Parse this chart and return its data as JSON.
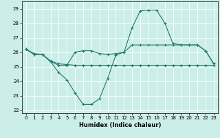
{
  "xlabel": "Humidex (Indice chaleur)",
  "bg_color": "#cceee8",
  "line_color": "#1a7a6e",
  "xlim": [
    -0.5,
    23.5
  ],
  "ylim": [
    21.8,
    29.5
  ],
  "yticks": [
    22,
    23,
    24,
    25,
    26,
    27,
    28,
    29
  ],
  "xticks": [
    0,
    1,
    2,
    3,
    4,
    5,
    6,
    7,
    8,
    9,
    10,
    11,
    12,
    13,
    14,
    15,
    16,
    17,
    18,
    19,
    20,
    21,
    22,
    23
  ],
  "line1_x": [
    0,
    1,
    2,
    3,
    4,
    5,
    6,
    7,
    8,
    9,
    10,
    11,
    12,
    13,
    14,
    15,
    16,
    17,
    18,
    19,
    20,
    21,
    22,
    23
  ],
  "line1_y": [
    26.2,
    25.9,
    25.85,
    25.4,
    25.2,
    25.15,
    25.1,
    25.1,
    25.1,
    25.1,
    25.1,
    25.1,
    25.1,
    25.1,
    25.1,
    25.1,
    25.1,
    25.1,
    25.1,
    25.1,
    25.1,
    25.1,
    25.1,
    25.1
  ],
  "line2_x": [
    0,
    1,
    2,
    3,
    4,
    5,
    6,
    7,
    8,
    9,
    10,
    11,
    12,
    13,
    14,
    15,
    16,
    17,
    18,
    19,
    20,
    21,
    22,
    23
  ],
  "line2_y": [
    26.2,
    25.85,
    25.85,
    25.35,
    24.6,
    24.1,
    23.2,
    22.4,
    22.4,
    22.8,
    24.2,
    25.8,
    26.0,
    26.5,
    26.5,
    26.5,
    26.5,
    26.5,
    26.5,
    26.5,
    26.5,
    26.5,
    26.1,
    25.2
  ],
  "line3_x": [
    0,
    1,
    2,
    3,
    4,
    5,
    6,
    7,
    8,
    9,
    10,
    11,
    12,
    13,
    14,
    15,
    16,
    17,
    18,
    19,
    20,
    21,
    22,
    23
  ],
  "line3_y": [
    26.2,
    25.85,
    25.85,
    25.35,
    25.1,
    25.1,
    26.0,
    26.1,
    26.1,
    25.9,
    25.85,
    25.9,
    26.0,
    27.7,
    28.85,
    28.9,
    28.9,
    28.0,
    26.6,
    26.5,
    26.5,
    26.5,
    26.1,
    25.2
  ]
}
